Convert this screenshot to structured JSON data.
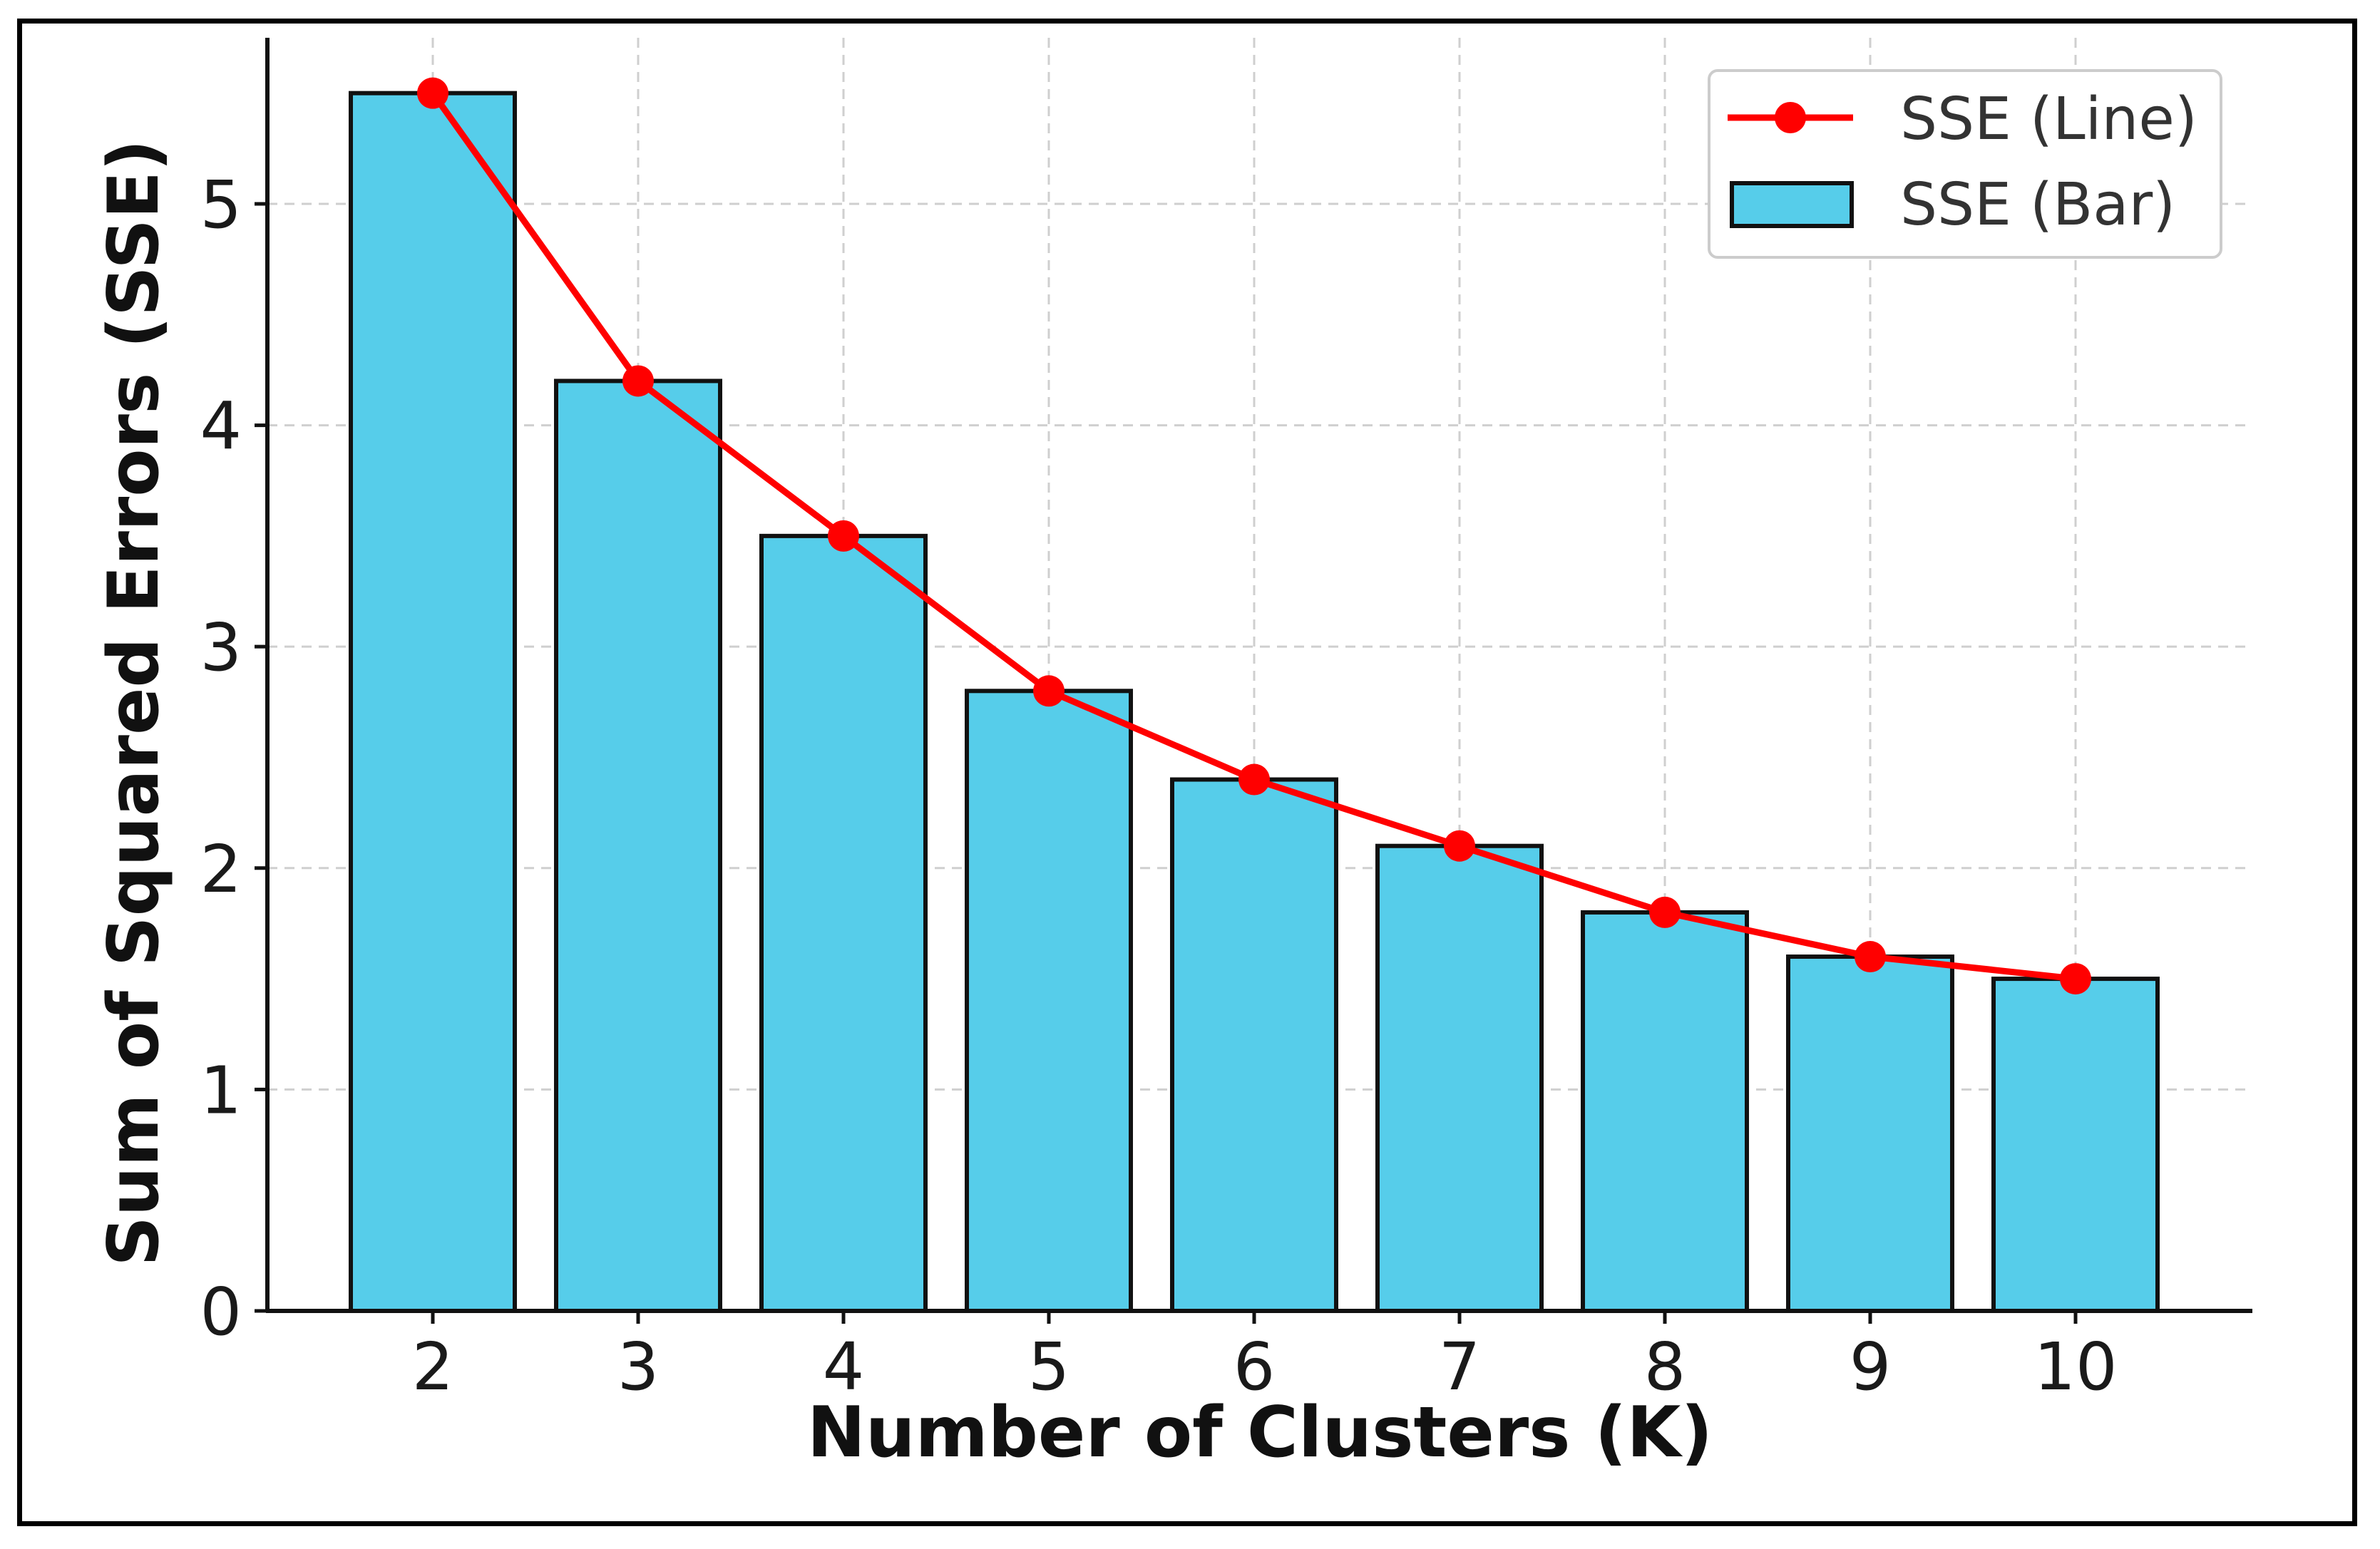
{
  "chart_data": {
    "type": "bar",
    "categories": [
      "2",
      "3",
      "4",
      "5",
      "6",
      "7",
      "8",
      "9",
      "10"
    ],
    "series": [
      {
        "name": "SSE (Bar)",
        "type": "bar",
        "values": [
          5.5,
          4.2,
          3.5,
          2.8,
          2.4,
          2.1,
          1.8,
          1.6,
          1.5
        ],
        "color": "#56CDEA",
        "edgecolor": "#111111"
      },
      {
        "name": "SSE (Line)",
        "type": "line",
        "values": [
          5.5,
          4.2,
          3.5,
          2.8,
          2.4,
          2.1,
          1.8,
          1.6,
          1.5
        ],
        "color": "#FF0000",
        "marker": "circle"
      }
    ],
    "title": "",
    "xlabel": "Number of Clusters (K)",
    "ylabel": "Sum of Squared Errors (SSE)",
    "ylim": [
      0,
      5.75
    ],
    "yticks": [
      "0",
      "1",
      "2",
      "3",
      "4",
      "5"
    ],
    "grid": true,
    "legend": "top-right"
  }
}
